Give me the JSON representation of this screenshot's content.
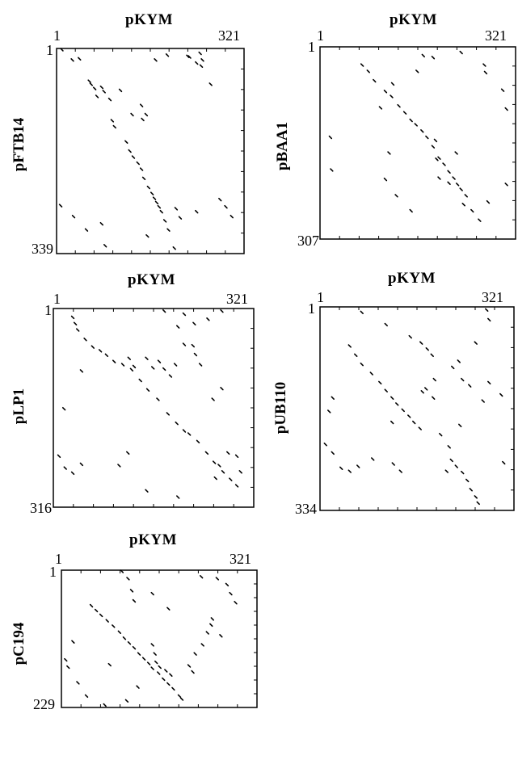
{
  "chart_data": [
    {
      "type": "scatter",
      "title": "pKYM",
      "xlabel": "pKYM",
      "ylabel": "pFTB14",
      "xlim": [
        1,
        321
      ],
      "ylim": [
        339,
        1
      ],
      "x_tick_labels": [
        "1",
        "321"
      ],
      "y_tick_labels": [
        "1",
        "339"
      ],
      "grid": false,
      "series": [
        {
          "values": [
            [
              10,
              3
            ],
            [
              28,
              20
            ],
            [
              40,
              18
            ],
            [
              57,
              55
            ],
            [
              60,
              60
            ],
            [
              66,
              67
            ],
            [
              70,
              80
            ],
            [
              78,
              65
            ],
            [
              82,
              72
            ],
            [
              96,
              120
            ],
            [
              100,
              130
            ],
            [
              120,
              155
            ],
            [
              126,
              170
            ],
            [
              132,
              180
            ],
            [
              140,
              190
            ],
            [
              146,
              200
            ],
            [
              150,
              215
            ],
            [
              158,
              230
            ],
            [
              164,
              240
            ],
            [
              168,
              248
            ],
            [
              172,
              255
            ],
            [
              176,
              262
            ],
            [
              180,
              270
            ],
            [
              186,
              285
            ],
            [
              192,
              300
            ],
            [
              130,
              110
            ],
            [
              146,
              95
            ],
            [
              154,
              110
            ],
            [
              148,
              118
            ],
            [
              170,
              20
            ],
            [
              190,
              12
            ],
            [
              228,
              15
            ],
            [
              240,
              25
            ],
            [
              248,
              30
            ],
            [
              264,
              60
            ],
            [
              280,
              250
            ],
            [
              290,
              262
            ],
            [
              300,
              278
            ],
            [
              8,
              260
            ],
            [
              30,
              278
            ],
            [
              52,
              300
            ],
            [
              78,
              290
            ],
            [
              84,
              326
            ],
            [
              156,
              310
            ],
            [
              205,
              265
            ],
            [
              212,
              280
            ],
            [
              225,
              14
            ],
            [
              246,
              9
            ],
            [
              250,
              20
            ],
            [
              202,
              330
            ],
            [
              110,
              70
            ],
            [
              92,
              85
            ],
            [
              240,
              270
            ]
          ]
        }
      ]
    },
    {
      "type": "scatter",
      "title": "pKYM",
      "xlabel": "pKYM",
      "ylabel": "pBAA1",
      "xlim": [
        1,
        321
      ],
      "ylim": [
        307,
        1
      ],
      "x_tick_labels": [
        "1",
        "321"
      ],
      "y_tick_labels": [
        "1",
        "307"
      ],
      "grid": false,
      "series": [
        {
          "values": [
            [
              70,
              30
            ],
            [
              80,
              40
            ],
            [
              90,
              55
            ],
            [
              108,
              72
            ],
            [
              118,
              80
            ],
            [
              130,
              95
            ],
            [
              140,
              106
            ],
            [
              150,
              118
            ],
            [
              158,
              125
            ],
            [
              168,
              135
            ],
            [
              176,
              145
            ],
            [
              186,
              160
            ],
            [
              196,
              178
            ],
            [
              204,
              188
            ],
            [
              212,
              200
            ],
            [
              220,
              210
            ],
            [
              226,
              220
            ],
            [
              232,
              228
            ],
            [
              240,
              238
            ],
            [
              160,
              40
            ],
            [
              170,
              15
            ],
            [
              186,
              18
            ],
            [
              232,
              10
            ],
            [
              270,
              30
            ],
            [
              272,
              42
            ],
            [
              300,
              70
            ],
            [
              306,
              100
            ],
            [
              120,
              60
            ],
            [
              100,
              98
            ],
            [
              18,
              145
            ],
            [
              20,
              197
            ],
            [
              108,
              212
            ],
            [
              126,
              238
            ],
            [
              150,
              262
            ],
            [
              196,
              210
            ],
            [
              212,
              218
            ],
            [
              236,
              252
            ],
            [
              250,
              262
            ],
            [
              262,
              277
            ],
            [
              276,
              248
            ],
            [
              306,
              220
            ],
            [
              190,
              150
            ],
            [
              192,
              180
            ],
            [
              224,
              170
            ],
            [
              114,
              170
            ]
          ]
        }
      ]
    },
    {
      "type": "scatter",
      "title": "pKYM",
      "xlabel": "pKYM",
      "ylabel": "pLP1",
      "xlim": [
        1,
        321
      ],
      "ylim": [
        316,
        1
      ],
      "x_tick_labels": [
        "1",
        "321"
      ],
      "y_tick_labels": [
        "1",
        "316"
      ],
      "grid": false,
      "series": [
        {
          "values": [
            [
              32,
              15
            ],
            [
              36,
              25
            ],
            [
              40,
              35
            ],
            [
              52,
              50
            ],
            [
              64,
              62
            ],
            [
              76,
              68
            ],
            [
              86,
              75
            ],
            [
              98,
              85
            ],
            [
              112,
              90
            ],
            [
              126,
              98
            ],
            [
              140,
              115
            ],
            [
              152,
              130
            ],
            [
              168,
              145
            ],
            [
              184,
              168
            ],
            [
              198,
              183
            ],
            [
              210,
              195
            ],
            [
              218,
              200
            ],
            [
              232,
              212
            ],
            [
              246,
              230
            ],
            [
              258,
              245
            ],
            [
              272,
              260
            ],
            [
              284,
              272
            ],
            [
              294,
              282
            ],
            [
              178,
              5
            ],
            [
              200,
              30
            ],
            [
              210,
              10
            ],
            [
              226,
              25
            ],
            [
              248,
              18
            ],
            [
              270,
              5
            ],
            [
              122,
              80
            ],
            [
              130,
              93
            ],
            [
              150,
              80
            ],
            [
              160,
              95
            ],
            [
              170,
              85
            ],
            [
              178,
              97
            ],
            [
              188,
              108
            ],
            [
              196,
              90
            ],
            [
              210,
              58
            ],
            [
              224,
              60
            ],
            [
              228,
              74
            ],
            [
              236,
              90
            ],
            [
              260,
              270
            ],
            [
              266,
              250
            ],
            [
              280,
              230
            ],
            [
              256,
              145
            ],
            [
              270,
              128
            ],
            [
              294,
              235
            ],
            [
              300,
              260
            ],
            [
              10,
              235
            ],
            [
              20,
              254
            ],
            [
              32,
              262
            ],
            [
              46,
              248
            ],
            [
              106,
              250
            ],
            [
              120,
              230
            ],
            [
              150,
              290
            ],
            [
              200,
              300
            ],
            [
              18,
              160
            ],
            [
              46,
              100
            ]
          ]
        }
      ]
    },
    {
      "type": "scatter",
      "title": "pKYM",
      "xlabel": "pKYM",
      "ylabel": "pUB110",
      "xlim": [
        1,
        321
      ],
      "ylim": [
        334,
        1
      ],
      "x_tick_labels": [
        "1",
        "321"
      ],
      "y_tick_labels": [
        "1",
        "334"
      ],
      "grid": false,
      "series": [
        {
          "values": [
            [
              50,
              65
            ],
            [
              60,
              80
            ],
            [
              70,
              95
            ],
            [
              86,
              110
            ],
            [
              100,
              125
            ],
            [
              110,
              138
            ],
            [
              120,
              150
            ],
            [
              128,
              160
            ],
            [
              138,
              170
            ],
            [
              148,
              180
            ],
            [
              156,
              190
            ],
            [
              166,
              200
            ],
            [
              170,
              140
            ],
            [
              176,
              135
            ],
            [
              188,
              150
            ],
            [
              218,
              252
            ],
            [
              226,
              262
            ],
            [
              236,
              272
            ],
            [
              244,
              285
            ],
            [
              250,
              300
            ],
            [
              258,
              312
            ],
            [
              262,
              322
            ],
            [
              150,
              50
            ],
            [
              168,
              60
            ],
            [
              178,
              70
            ],
            [
              186,
              80
            ],
            [
              220,
              100
            ],
            [
              230,
              90
            ],
            [
              236,
              120
            ],
            [
              248,
              130
            ],
            [
              270,
              155
            ],
            [
              200,
              210
            ],
            [
              210,
              270
            ],
            [
              214,
              230
            ],
            [
              232,
              195
            ],
            [
              280,
              125
            ],
            [
              22,
              150
            ],
            [
              16,
              172
            ],
            [
              10,
              226
            ],
            [
              22,
              240
            ],
            [
              36,
              265
            ],
            [
              50,
              270
            ],
            [
              64,
              262
            ],
            [
              88,
              250
            ],
            [
              122,
              258
            ],
            [
              134,
              270
            ],
            [
              276,
              6
            ],
            [
              280,
              22
            ],
            [
              300,
              145
            ],
            [
              304,
              256
            ],
            [
              70,
              10
            ],
            [
              110,
              30
            ],
            [
              120,
              190
            ],
            [
              190,
              120
            ],
            [
              258,
              60
            ]
          ]
        }
      ]
    },
    {
      "type": "scatter",
      "title": "pKYM",
      "xlabel": "pKYM",
      "ylabel": "pC194",
      "xlim": [
        1,
        321
      ],
      "ylim": [
        229,
        1
      ],
      "x_tick_labels": [
        "1",
        "321"
      ],
      "y_tick_labels": [
        "1",
        "229"
      ],
      "grid": false,
      "series": [
        {
          "values": [
            [
              50,
              60
            ],
            [
              58,
              68
            ],
            [
              66,
              76
            ],
            [
              76,
              85
            ],
            [
              86,
              94
            ],
            [
              96,
              104
            ],
            [
              104,
              114
            ],
            [
              112,
              122
            ],
            [
              120,
              130
            ],
            [
              128,
              140
            ],
            [
              136,
              148
            ],
            [
              144,
              156
            ],
            [
              150,
              164
            ],
            [
              160,
              172
            ],
            [
              168,
              182
            ],
            [
              176,
              190
            ],
            [
              184,
              198
            ],
            [
              194,
              210
            ],
            [
              198,
              215
            ],
            [
              100,
              3
            ],
            [
              110,
              15
            ],
            [
              116,
              35
            ],
            [
              120,
              52
            ],
            [
              150,
              125
            ],
            [
              154,
              140
            ],
            [
              156,
              154
            ],
            [
              162,
              162
            ],
            [
              172,
              168
            ],
            [
              180,
              175
            ],
            [
              210,
              160
            ],
            [
              216,
              170
            ],
            [
              220,
              140
            ],
            [
              232,
              125
            ],
            [
              240,
              105
            ],
            [
              246,
              92
            ],
            [
              248,
              82
            ],
            [
              262,
              110
            ],
            [
              272,
              25
            ],
            [
              278,
              40
            ],
            [
              286,
              55
            ],
            [
              230,
              12
            ],
            [
              256,
              15
            ],
            [
              150,
              40
            ],
            [
              176,
              65
            ],
            [
              8,
              150
            ],
            [
              12,
              162
            ],
            [
              28,
              188
            ],
            [
              42,
              210
            ],
            [
              72,
              225
            ],
            [
              80,
              158
            ],
            [
              108,
              218
            ],
            [
              126,
              195
            ],
            [
              20,
              120
            ]
          ]
        }
      ]
    }
  ]
}
